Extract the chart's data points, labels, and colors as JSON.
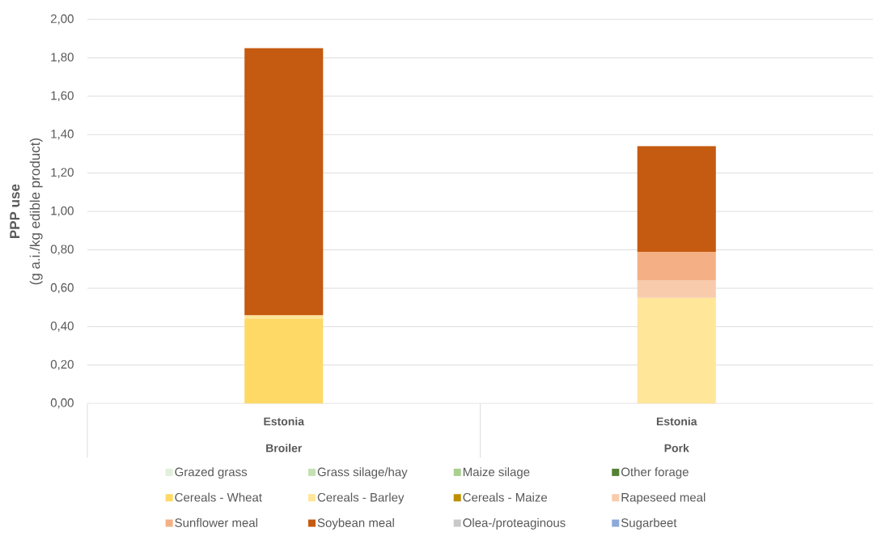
{
  "chart_data": {
    "type": "bar",
    "stacked": true,
    "categories": [
      "Estonia",
      "Estonia"
    ],
    "annotations": [
      "Broiler",
      "Pork"
    ],
    "ylabel": "**PPP use**\n(g a.i./kg edible product)",
    "ylim": [
      0,
      2
    ],
    "yticks": [
      {
        "value": 0,
        "label": "0,00"
      },
      {
        "value": 0.2,
        "label": "0,20"
      },
      {
        "value": 0.4,
        "label": "0,40"
      },
      {
        "value": 0.6,
        "label": "0,60"
      },
      {
        "value": 0.8,
        "label": "0,80"
      },
      {
        "value": 1.0,
        "label": "1,00"
      },
      {
        "value": 1.2,
        "label": "1,20"
      },
      {
        "value": 1.4,
        "label": "1,40"
      },
      {
        "value": 1.6,
        "label": "1,60"
      },
      {
        "value": 1.8,
        "label": "1,80"
      },
      {
        "value": 2.0,
        "label": "2,00"
      }
    ],
    "grid": "y",
    "legend": "bottom",
    "series": [
      {
        "name": "Grazed grass",
        "color": "#e2efda",
        "values": [
          null,
          null
        ]
      },
      {
        "name": "Grass silage/hay",
        "color": "#c6e0b4",
        "values": [
          null,
          null
        ]
      },
      {
        "name": "Maize silage",
        "color": "#a9d08e",
        "values": [
          null,
          null
        ]
      },
      {
        "name": "Other forage",
        "color": "#548235",
        "values": [
          null,
          null
        ]
      },
      {
        "name": "Cereals - Wheat",
        "color": "#ffd966",
        "values": [
          0.44,
          null
        ]
      },
      {
        "name": "Cereals - Barley",
        "color": "#ffe699",
        "values": [
          0.02,
          0.55
        ]
      },
      {
        "name": "Cereals - Maize",
        "color": "#bf8f00",
        "values": [
          null,
          null
        ]
      },
      {
        "name": "Rapeseed meal",
        "color": "#f8cbad",
        "values": [
          null,
          0.09
        ]
      },
      {
        "name": "Sunflower meal",
        "color": "#f4b084",
        "values": [
          null,
          0.15
        ]
      },
      {
        "name": "Soybean meal",
        "color": "#c55a11",
        "values": [
          1.39,
          0.55
        ]
      },
      {
        "name": "Olea-/proteaginous",
        "color": "#c9c9c9",
        "values": [
          null,
          null
        ]
      },
      {
        "name": "Sugarbeet",
        "color": "#8eaadb",
        "values": [
          null,
          null
        ]
      }
    ]
  }
}
